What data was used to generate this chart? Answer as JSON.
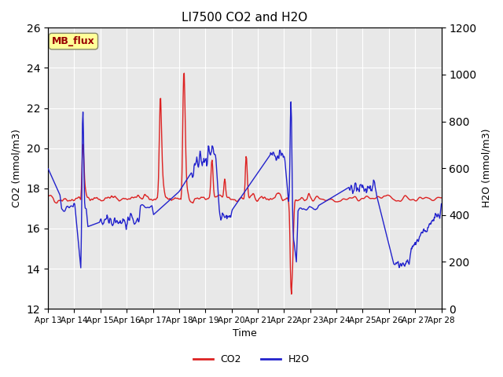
{
  "title": "LI7500 CO2 and H2O",
  "xlabel": "Time",
  "ylabel_left": "CO2 (mmol/m3)",
  "ylabel_right": "H2O (mmol/m3)",
  "ylim_left": [
    12,
    26
  ],
  "ylim_right": [
    0,
    1200
  ],
  "yticks_left": [
    12,
    14,
    16,
    18,
    20,
    22,
    24,
    26
  ],
  "yticks_right": [
    0,
    200,
    400,
    600,
    800,
    1000,
    1200
  ],
  "xtick_labels": [
    "Apr 13",
    "Apr 14",
    "Apr 15",
    "Apr 16",
    "Apr 17",
    "Apr 18",
    "Apr 19",
    "Apr 20",
    "Apr 21",
    "Apr 22",
    "Apr 23",
    "Apr 24",
    "Apr 25",
    "Apr 26",
    "Apr 27",
    "Apr 28"
  ],
  "watermark_text": "MB_flux",
  "watermark_fc": "#ffff99",
  "watermark_ec": "#888866",
  "watermark_tc": "#990000",
  "co2_color": "#dd2222",
  "h2o_color": "#2222cc",
  "background_color": "#e8e8e8",
  "fig_background": "#ffffff",
  "legend_co2": "CO2",
  "legend_h2o": "H2O"
}
